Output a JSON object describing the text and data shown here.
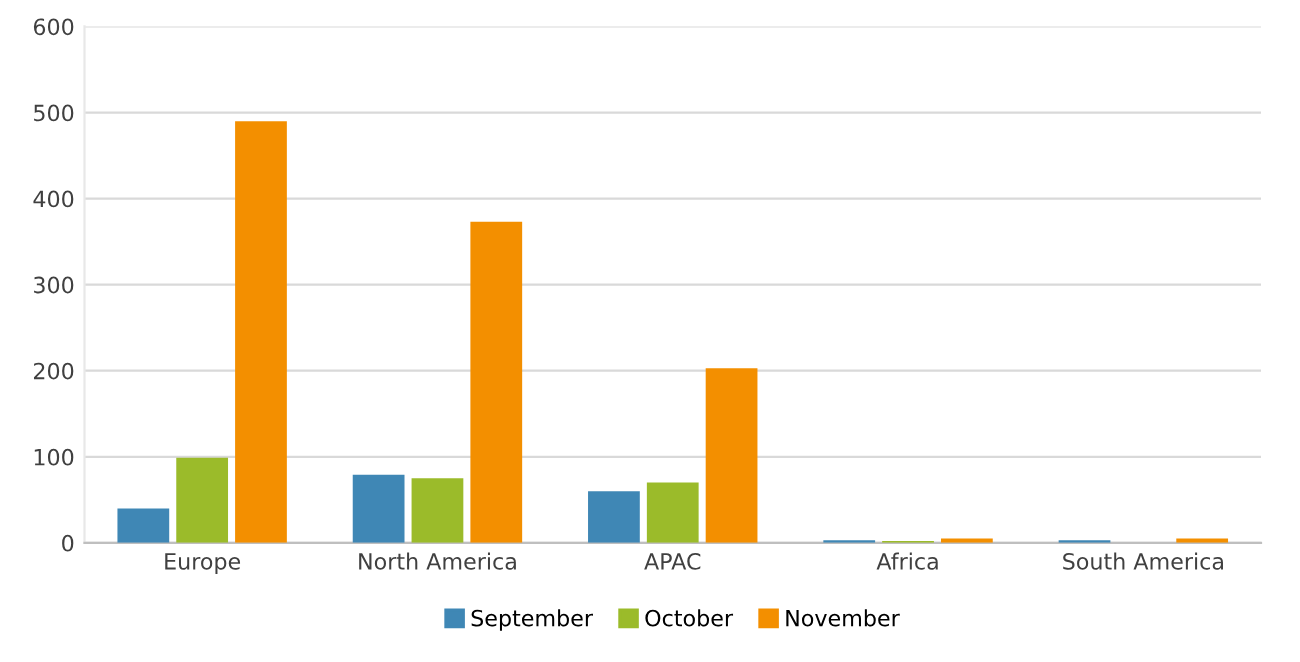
{
  "chart_data": {
    "type": "bar",
    "categories": [
      "Europe",
      "North America",
      "APAC",
      "Africa",
      "South America"
    ],
    "series": [
      {
        "name": "September",
        "color": "#3f87b5",
        "values": [
          40,
          79,
          60,
          3,
          3
        ]
      },
      {
        "name": "October",
        "color": "#9bbb2a",
        "values": [
          99,
          75,
          70,
          2,
          0
        ]
      },
      {
        "name": "November",
        "color": "#f38f00",
        "values": [
          490,
          373,
          203,
          5,
          5
        ]
      }
    ],
    "ylim": [
      0,
      600
    ],
    "yticks": [
      0,
      100,
      200,
      300,
      400,
      500,
      600
    ],
    "grid": "y",
    "legend": "bottom"
  }
}
